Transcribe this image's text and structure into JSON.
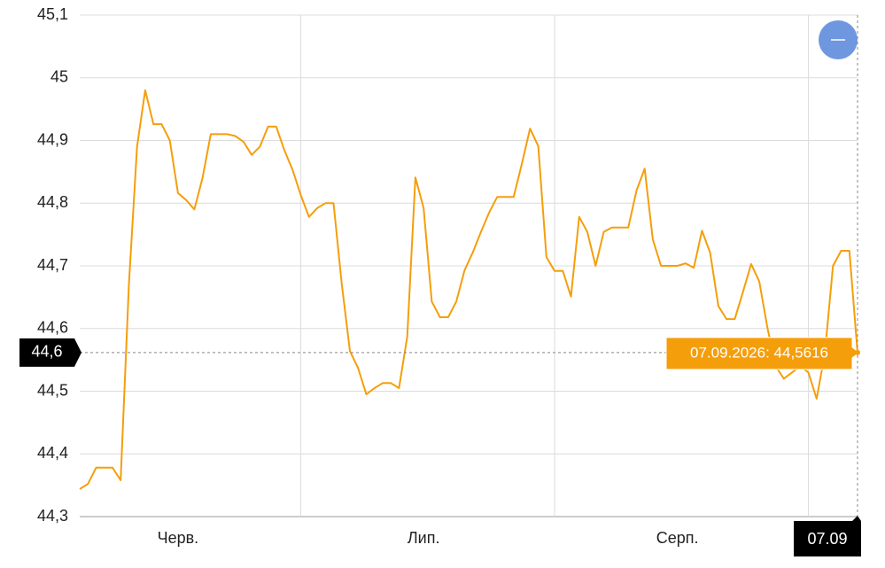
{
  "chart_data": {
    "type": "line",
    "color": "#f59e0b",
    "x": [
      "2026-06-04",
      "2026-06-05",
      "2026-06-06",
      "2026-06-07",
      "2026-06-08",
      "2026-06-09",
      "2026-06-10",
      "2026-06-11",
      "2026-06-12",
      "2026-06-13",
      "2026-06-14",
      "2026-06-15",
      "2026-06-16",
      "2026-06-17",
      "2026-06-18",
      "2026-06-19",
      "2026-06-20",
      "2026-06-21",
      "2026-06-22",
      "2026-06-23",
      "2026-06-24",
      "2026-06-25",
      "2026-06-26",
      "2026-06-27",
      "2026-06-28",
      "2026-06-29",
      "2026-06-30",
      "2026-07-01",
      "2026-07-02",
      "2026-07-03",
      "2026-07-04",
      "2026-07-05",
      "2026-07-06",
      "2026-07-07",
      "2026-07-08",
      "2026-07-09",
      "2026-07-10",
      "2026-07-11",
      "2026-07-12",
      "2026-07-13",
      "2026-07-14",
      "2026-07-15",
      "2026-07-16",
      "2026-07-17",
      "2026-07-18",
      "2026-07-19",
      "2026-07-20",
      "2026-07-21",
      "2026-07-22",
      "2026-07-23",
      "2026-07-24",
      "2026-07-25",
      "2026-07-26",
      "2026-07-27",
      "2026-07-28",
      "2026-07-29",
      "2026-07-30",
      "2026-07-31",
      "2026-08-01",
      "2026-08-02",
      "2026-08-03",
      "2026-08-04",
      "2026-08-05",
      "2026-08-06",
      "2026-08-07",
      "2026-08-08",
      "2026-08-09",
      "2026-08-10",
      "2026-08-11",
      "2026-08-12",
      "2026-08-13",
      "2026-08-14",
      "2026-08-15",
      "2026-08-16",
      "2026-08-17",
      "2026-08-18",
      "2026-08-19",
      "2026-08-20",
      "2026-08-21",
      "2026-08-22",
      "2026-08-23",
      "2026-08-24",
      "2026-08-25",
      "2026-08-26",
      "2026-08-27",
      "2026-08-28",
      "2026-08-29",
      "2026-08-30",
      "2026-08-31",
      "2026-09-01",
      "2026-09-02",
      "2026-09-03",
      "2026-09-04",
      "2026-09-05",
      "2026-09-06",
      "2026-09-07"
    ],
    "values": [
      44.344,
      44.352,
      44.378,
      44.378,
      44.378,
      44.358,
      44.67,
      44.89,
      44.98,
      44.926,
      44.926,
      44.9,
      44.816,
      44.805,
      44.79,
      44.84,
      44.91,
      44.91,
      44.91,
      44.907,
      44.898,
      44.877,
      44.89,
      44.922,
      44.922,
      44.884,
      44.853,
      44.813,
      44.778,
      44.792,
      44.8,
      44.8,
      44.672,
      44.564,
      44.537,
      44.495,
      44.505,
      44.513,
      44.513,
      44.505,
      44.587,
      44.841,
      44.792,
      44.643,
      44.618,
      44.618,
      44.643,
      44.693,
      44.721,
      44.754,
      44.785,
      44.81,
      44.81,
      44.81,
      44.863,
      44.919,
      44.891,
      44.714,
      44.692,
      44.692,
      44.651,
      44.778,
      44.754,
      44.7,
      44.754,
      44.761,
      44.761,
      44.761,
      44.82,
      44.855,
      44.742,
      44.7,
      44.7,
      44.7,
      44.704,
      44.697,
      44.756,
      44.721,
      44.636,
      44.615,
      44.615,
      44.658,
      44.703,
      44.675,
      44.601,
      44.54,
      44.52,
      44.53,
      44.54,
      44.53,
      44.488,
      44.559,
      44.7,
      44.724,
      44.724,
      44.5616
    ],
    "xlim": [
      "2026-06-04",
      "2026-09-07"
    ],
    "ylim": [
      44.3,
      45.1
    ],
    "yticks": [
      {
        "value": 44.3,
        "label": "44,3"
      },
      {
        "value": 44.4,
        "label": "44,4"
      },
      {
        "value": 44.5,
        "label": "44,5"
      },
      {
        "value": 44.6,
        "label": "44,6"
      },
      {
        "value": 44.7,
        "label": "44,7"
      },
      {
        "value": 44.8,
        "label": "44,8"
      },
      {
        "value": 44.9,
        "label": "44,9"
      },
      45,
      {
        "value": 45.1,
        "label": "45,1"
      }
    ],
    "xticks": [
      {
        "value": "2026-06-16",
        "label": "Черв."
      },
      {
        "value": "2026-07-16",
        "label": "Лип."
      },
      {
        "value": "2026-08-16",
        "label": "Серп."
      }
    ],
    "xgrid": [
      "2026-07-01",
      "2026-08-01",
      "2026-09-01"
    ],
    "grid": true,
    "crosshair": {
      "x": "2026-09-07",
      "x_label": "07.09",
      "y": 44.5616,
      "y_label": "44,6",
      "tooltip": "07.09.2026: 44,5616"
    }
  }
}
